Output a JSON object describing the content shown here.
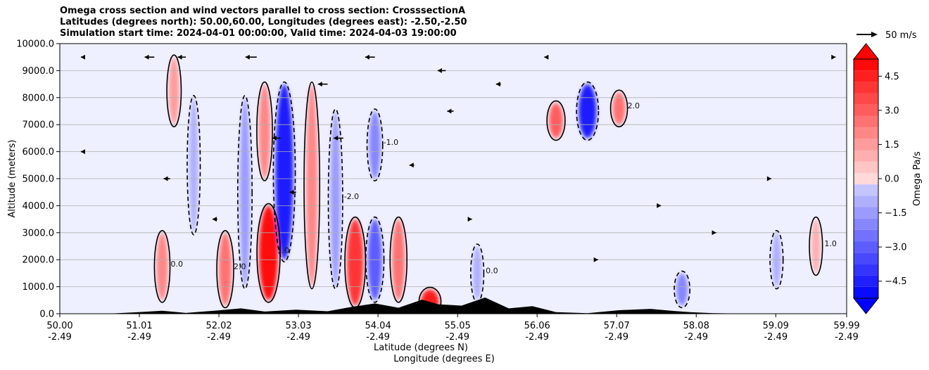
{
  "title_lines": [
    "Omega cross section and wind vectors parallel to cross section: CrosssectionA",
    "Latitudes (degrees north): 50.00,60.00, Longitudes (degrees east): -2.50,-2.50",
    "Simulation start time: 2024-04-01 00:00:00, Valid time: 2024-04-03 19:00:00"
  ],
  "chart_data": {
    "type": "heatmap",
    "ylabel": "Altitude (meters)",
    "xlabel_line1": "Latitude (degrees N)",
    "xlabel_line2": "Longitude (degrees E)",
    "ylim": [
      0,
      10000
    ],
    "y_ticks": [
      "0.0",
      "1000.0",
      "2000.0",
      "3000.0",
      "4000.0",
      "5000.0",
      "6000.0",
      "7000.0",
      "8000.0",
      "9000.0",
      "10000.0"
    ],
    "x_ticks": [
      {
        "lat": "50.00",
        "lon": "-2.49"
      },
      {
        "lat": "51.01",
        "lon": "-2.49"
      },
      {
        "lat": "52.02",
        "lon": "-2.49"
      },
      {
        "lat": "53.03",
        "lon": "-2.49"
      },
      {
        "lat": "54.04",
        "lon": "-2.49"
      },
      {
        "lat": "55.05",
        "lon": "-2.49"
      },
      {
        "lat": "56.06",
        "lon": "-2.49"
      },
      {
        "lat": "57.07",
        "lon": "-2.49"
      },
      {
        "lat": "58.08",
        "lon": "-2.49"
      },
      {
        "lat": "59.09",
        "lon": "-2.49"
      },
      {
        "lat": "59.99",
        "lon": "-2.49"
      }
    ],
    "grid": "horizontal",
    "colorbar": {
      "label": "Omega Pa/s",
      "range": [
        -5.25,
        5.25
      ],
      "ticks": [
        "4.5",
        "3.0",
        "1.5",
        "0.0",
        "−1.5",
        "−3.0",
        "−4.5"
      ],
      "colors": [
        "#0000ff",
        "#ff0000",
        "#eef0ff",
        "#fff0f0"
      ]
    },
    "quiver_key_label": "50 m/s",
    "contour_labels": [
      "0.0",
      "1.0",
      "-1.0",
      "2.0",
      "-2.0"
    ],
    "omega_cells": [
      {
        "lat": 51.3,
        "alt_lo": 500,
        "alt_hi": 3000,
        "v": 2.0
      },
      {
        "lat": 51.45,
        "alt_lo": 7000,
        "alt_hi": 9500,
        "v": 1.5
      },
      {
        "lat": 51.7,
        "alt_lo": 3000,
        "alt_hi": 8000,
        "v": -1.0
      },
      {
        "lat": 52.1,
        "alt_lo": 300,
        "alt_hi": 3000,
        "v": 2.5
      },
      {
        "lat": 52.35,
        "alt_lo": 1000,
        "alt_hi": 8000,
        "v": -1.5
      },
      {
        "lat": 52.6,
        "alt_lo": 5000,
        "alt_hi": 8500,
        "v": 2.0
      },
      {
        "lat": 52.65,
        "alt_lo": 500,
        "alt_hi": 4000,
        "v": 5.0
      },
      {
        "lat": 52.85,
        "alt_lo": 2000,
        "alt_hi": 8500,
        "v": -4.5
      },
      {
        "lat": 53.2,
        "alt_lo": 1000,
        "alt_hi": 8500,
        "v": 2.0
      },
      {
        "lat": 53.5,
        "alt_lo": 1000,
        "alt_hi": 7500,
        "v": -1.5
      },
      {
        "lat": 53.75,
        "alt_lo": 300,
        "alt_hi": 3500,
        "v": 4.0
      },
      {
        "lat": 54.0,
        "alt_lo": 500,
        "alt_hi": 3500,
        "v": -3.0
      },
      {
        "lat": 54.0,
        "alt_lo": 5000,
        "alt_hi": 7500,
        "v": -2.0
      },
      {
        "lat": 54.3,
        "alt_lo": 500,
        "alt_hi": 3500,
        "v": 2.5
      },
      {
        "lat": 54.7,
        "alt_lo": 0,
        "alt_hi": 900,
        "v": 4.5
      },
      {
        "lat": 55.3,
        "alt_lo": 500,
        "alt_hi": 2500,
        "v": -1.0
      },
      {
        "lat": 56.3,
        "alt_lo": 6500,
        "alt_hi": 7800,
        "v": 3.0
      },
      {
        "lat": 56.7,
        "alt_lo": 6500,
        "alt_hi": 8500,
        "v": -4.5
      },
      {
        "lat": 57.1,
        "alt_lo": 7000,
        "alt_hi": 8200,
        "v": 2.5
      },
      {
        "lat": 57.9,
        "alt_lo": 300,
        "alt_hi": 1500,
        "v": -2.0
      },
      {
        "lat": 59.1,
        "alt_lo": 1000,
        "alt_hi": 3000,
        "v": -1.0
      },
      {
        "lat": 59.6,
        "alt_lo": 1500,
        "alt_hi": 3500,
        "v": 1.0
      }
    ],
    "wind_vectors": [
      {
        "lat": 51.2,
        "alt": 9500,
        "u": -30
      },
      {
        "lat": 51.6,
        "alt": 9500,
        "u": -25
      },
      {
        "lat": 52.5,
        "alt": 9500,
        "u": -35
      },
      {
        "lat": 53.4,
        "alt": 8500,
        "u": -30
      },
      {
        "lat": 54.0,
        "alt": 9500,
        "u": -30
      },
      {
        "lat": 54.9,
        "alt": 9000,
        "u": -25
      },
      {
        "lat": 53.6,
        "alt": 6500,
        "u": -30
      },
      {
        "lat": 52.8,
        "alt": 6500,
        "u": -25
      },
      {
        "lat": 51.4,
        "alt": 5000,
        "u": -20
      },
      {
        "lat": 55.0,
        "alt": 7500,
        "u": -20
      },
      {
        "lat": 53.0,
        "alt": 4500,
        "u": -20
      },
      {
        "lat": 54.5,
        "alt": 5500,
        "u": -15
      },
      {
        "lat": 52.0,
        "alt": 3500,
        "u": -15
      },
      {
        "lat": 55.6,
        "alt": 8500,
        "u": -15
      },
      {
        "lat": 56.2,
        "alt": 9500,
        "u": -12
      },
      {
        "lat": 55.2,
        "alt": 3500,
        "u": 8
      },
      {
        "lat": 56.8,
        "alt": 2000,
        "u": 8
      },
      {
        "lat": 57.6,
        "alt": 4000,
        "u": 8
      },
      {
        "lat": 58.3,
        "alt": 3000,
        "u": 8
      },
      {
        "lat": 59.0,
        "alt": 5000,
        "u": 8
      },
      {
        "lat": 59.8,
        "alt": 9500,
        "u": 12
      },
      {
        "lat": 50.3,
        "alt": 9500,
        "u": -8
      },
      {
        "lat": 50.3,
        "alt": 6000,
        "u": -8
      }
    ],
    "terrain": [
      {
        "lat": 50.0,
        "alt": 0
      },
      {
        "lat": 50.6,
        "alt": 0
      },
      {
        "lat": 51.0,
        "alt": 60
      },
      {
        "lat": 51.3,
        "alt": 110
      },
      {
        "lat": 51.6,
        "alt": 30
      },
      {
        "lat": 52.0,
        "alt": 120
      },
      {
        "lat": 52.3,
        "alt": 200
      },
      {
        "lat": 52.6,
        "alt": 80
      },
      {
        "lat": 53.0,
        "alt": 150
      },
      {
        "lat": 53.4,
        "alt": 90
      },
      {
        "lat": 53.7,
        "alt": 250
      },
      {
        "lat": 54.0,
        "alt": 380
      },
      {
        "lat": 54.3,
        "alt": 220
      },
      {
        "lat": 54.6,
        "alt": 520
      },
      {
        "lat": 54.8,
        "alt": 350
      },
      {
        "lat": 55.1,
        "alt": 300
      },
      {
        "lat": 55.4,
        "alt": 600
      },
      {
        "lat": 55.7,
        "alt": 200
      },
      {
        "lat": 56.0,
        "alt": 280
      },
      {
        "lat": 56.3,
        "alt": 60
      },
      {
        "lat": 56.7,
        "alt": 20
      },
      {
        "lat": 57.1,
        "alt": 130
      },
      {
        "lat": 57.5,
        "alt": 180
      },
      {
        "lat": 57.8,
        "alt": 100
      },
      {
        "lat": 58.0,
        "alt": 60
      },
      {
        "lat": 58.3,
        "alt": 20
      },
      {
        "lat": 58.8,
        "alt": 0
      },
      {
        "lat": 59.5,
        "alt": 0
      },
      {
        "lat": 59.99,
        "alt": 0
      }
    ]
  }
}
